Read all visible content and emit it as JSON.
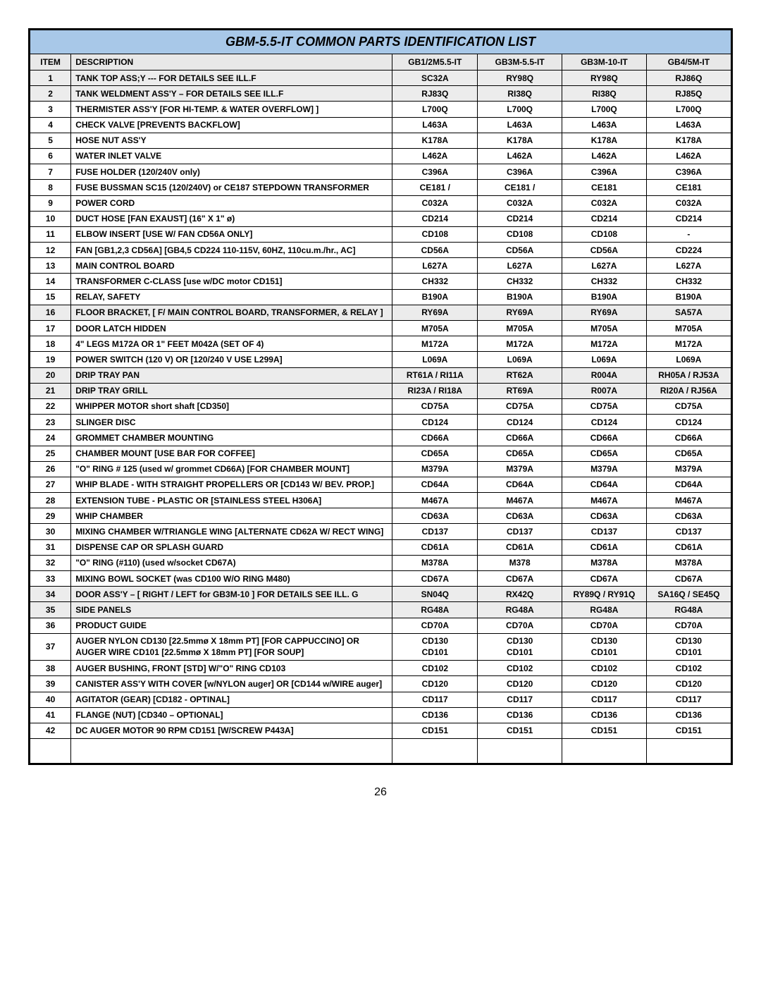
{
  "title": "GBM-5.5-IT COMMON PARTS IDENTIFICATION LIST",
  "columns": [
    "ITEM",
    "DESCRIPTION",
    "GB1/2M5.5-IT",
    "GB3M-5.5-IT",
    "GB3M-10-IT",
    "GB4/5M-IT"
  ],
  "page_number": "26",
  "rows": [
    {
      "n": "1",
      "shade": true,
      "desc": "TANK TOP  ASS;Y --- FOR DETAILS SEE ILL.F",
      "v": [
        "SC32A",
        "RY98Q",
        "RY98Q",
        "RJ86Q"
      ]
    },
    {
      "n": "2",
      "shade": true,
      "desc": "TANK  WELDMENT  ASS'Y – FOR DETAILS SEE ILL.F",
      "v": [
        "RJ83Q",
        "RI38Q",
        "RI38Q",
        "RJ85Q"
      ]
    },
    {
      "n": "3",
      "shade": false,
      "desc": "THERMISTER ASS'Y  [FOR HI-TEMP. & WATER OVERFLOW] ]",
      "v": [
        "L700Q",
        "L700Q",
        "L700Q",
        "L700Q"
      ]
    },
    {
      "n": "4",
      "shade": false,
      "desc": "CHECK VALVE  [PREVENTS BACKFLOW]",
      "v": [
        "L463A",
        "L463A",
        "L463A",
        "L463A"
      ]
    },
    {
      "n": "5",
      "shade": false,
      "desc": "HOSE NUT ASS'Y",
      "v": [
        "K178A",
        "K178A",
        "K178A",
        "K178A"
      ]
    },
    {
      "n": "6",
      "shade": false,
      "desc": "WATER INLET VALVE",
      "v": [
        "L462A",
        "L462A",
        "L462A",
        "L462A"
      ]
    },
    {
      "n": "7",
      "shade": false,
      "desc": "FUSE HOLDER (120/240V only)",
      "v": [
        "C396A",
        "C396A",
        "C396A",
        "C396A"
      ]
    },
    {
      "n": "8",
      "shade": false,
      "desc": "FUSE BUSSMAN SC15 (120/240V) or CE187 STEPDOWN TRANSFORMER",
      "v": [
        "CE181 /",
        "CE181 /",
        "CE181",
        "CE181"
      ]
    },
    {
      "n": "9",
      "shade": false,
      "desc": "POWER CORD",
      "v": [
        "C032A",
        "C032A",
        "C032A",
        "C032A"
      ]
    },
    {
      "n": "10",
      "shade": false,
      "desc": "DUCT  HOSE  [FAN EXAUST] (16\"  X 1\" ø)",
      "v": [
        "CD214",
        "CD214",
        "CD214",
        "CD214"
      ]
    },
    {
      "n": "11",
      "shade": false,
      "desc": "ELBOW INSERT   [USE W/ FAN CD56A ONLY]",
      "v": [
        "CD108",
        "CD108",
        "CD108",
        "-"
      ]
    },
    {
      "n": "12",
      "shade": false,
      "desc": "FAN     [GB1,2,3 CD56A]  [GB4,5 CD224 110-115V, 60HZ, 110cu.m./hr.,  AC]",
      "v": [
        "CD56A",
        "CD56A",
        "CD56A",
        "CD224"
      ]
    },
    {
      "n": "13",
      "shade": false,
      "desc": "MAIN CONTROL BOARD",
      "v": [
        "L627A",
        "L627A",
        "L627A",
        "L627A"
      ]
    },
    {
      "n": "14",
      "shade": false,
      "desc": "TRANSFORMER  C-CLASS [use w/DC motor CD151]",
      "v": [
        "CH332",
        "CH332",
        "CH332",
        "CH332"
      ]
    },
    {
      "n": "15",
      "shade": false,
      "desc": " RELAY,  SAFETY",
      "v": [
        "B190A",
        "B190A",
        "B190A",
        "B190A"
      ]
    },
    {
      "n": "16",
      "shade": true,
      "desc": "FLOOR BRACKET,  [ F/ MAIN CONTROL BOARD, TRANSFORMER, & RELAY ]",
      "v": [
        "RY69A",
        "RY69A",
        "RY69A",
        "SA57A"
      ]
    },
    {
      "n": "17",
      "shade": false,
      "desc": "DOOR LATCH HIDDEN",
      "v": [
        "M705A",
        "M705A",
        "M705A",
        "M705A"
      ]
    },
    {
      "n": "18",
      "shade": false,
      "desc": "4\" LEGS M172A  OR   1\" FEET  M042A  (SET OF 4)",
      "v": [
        "M172A",
        "M172A",
        "M172A",
        "M172A"
      ]
    },
    {
      "n": "19",
      "shade": false,
      "desc": "POWER SWITCH  (120 V)      OR  [120/240 V USE L299A]",
      "v": [
        "L069A",
        "L069A",
        "L069A",
        "L069A"
      ]
    },
    {
      "n": "20",
      "shade": true,
      "desc": "DRIP TRAY  PAN",
      "v": [
        "RT61A / RI11A",
        "RT62A",
        "R004A",
        "RH05A / RJ53A"
      ]
    },
    {
      "n": "21",
      "shade": true,
      "desc": "DRIP TRAY GRILL",
      "v": [
        "RI23A / RI18A",
        "RT69A",
        "R007A",
        "RI20A / RJ56A"
      ]
    },
    {
      "n": "22",
      "shade": false,
      "desc": "WHIPPER MOTOR   short  shaft  [CD350]",
      "v": [
        "CD75A",
        "CD75A",
        "CD75A",
        "CD75A"
      ]
    },
    {
      "n": "23",
      "shade": false,
      "desc": "SLINGER DISC",
      "v": [
        "CD124",
        "CD124",
        "CD124",
        "CD124"
      ]
    },
    {
      "n": "24",
      "shade": false,
      "desc": "GROMMET CHAMBER MOUNTING",
      "v": [
        "CD66A",
        "CD66A",
        "CD66A",
        "CD66A"
      ]
    },
    {
      "n": "25",
      "shade": false,
      "desc": "CHAMBER MOUNT     [USE BAR FOR COFFEE]",
      "v": [
        "CD65A",
        "CD65A",
        "CD65A",
        "CD65A"
      ]
    },
    {
      "n": "26",
      "shade": false,
      "desc": "\"O\" RING # 125  (used w/ grommet CD66A)  [FOR CHAMBER MOUNT]",
      "v": [
        "M379A",
        "M379A",
        "M379A",
        "M379A"
      ]
    },
    {
      "n": "27",
      "shade": false,
      "desc": "WHIP BLADE - WITH STRAIGHT PROPELLERS OR  [CD143 W/ BEV. PROP.]",
      "v": [
        "CD64A",
        "CD64A",
        "CD64A",
        "CD64A"
      ]
    },
    {
      "n": "28",
      "shade": false,
      "desc": "EXTENSION TUBE - PLASTIC     OR   [STAINLESS STEEL H306A]",
      "v": [
        "M467A",
        "M467A",
        "M467A",
        "M467A"
      ]
    },
    {
      "n": "29",
      "shade": false,
      "desc": "WHIP CHAMBER",
      "v": [
        "CD63A",
        "CD63A",
        "CD63A",
        "CD63A"
      ]
    },
    {
      "n": "30",
      "shade": false,
      "desc": "MIXING CHAMBER  W/TRIANGLE WING  [ALTERNATE CD62A W/ RECT  WING]",
      "v": [
        "CD137",
        "CD137",
        "CD137",
        "CD137"
      ]
    },
    {
      "n": "31",
      "shade": false,
      "desc": "DISPENSE CAP OR SPLASH GUARD",
      "v": [
        "CD61A",
        "CD61A",
        "CD61A",
        "CD61A"
      ]
    },
    {
      "n": "32",
      "shade": false,
      "desc": "\"O\" RING (#110) (used w/socket CD67A)",
      "v": [
        "M378A",
        "M378",
        "M378A",
        "M378A"
      ]
    },
    {
      "n": "33",
      "shade": false,
      "desc": "MIXING BOWL SOCKET    (was CD100 W/O RING M480)",
      "v": [
        "CD67A",
        "CD67A",
        "CD67A",
        "CD67A"
      ]
    },
    {
      "n": "34",
      "shade": true,
      "desc": "DOOR ASS'Y – [ RIGHT / LEFT for GB3M-10 ] FOR DETAILS  SEE  ILL. G",
      "v": [
        "SN04Q",
        "RX42Q",
        "RY89Q / RY91Q",
        "SA16Q / SE45Q"
      ]
    },
    {
      "n": "35",
      "shade": true,
      "desc": "SIDE PANELS",
      "v": [
        "RG48A",
        "RG48A",
        "RG48A",
        "RG48A"
      ]
    },
    {
      "n": "36",
      "shade": false,
      "desc": "PRODUCT GUIDE",
      "v": [
        "CD70A",
        "CD70A",
        "CD70A",
        "CD70A"
      ]
    },
    {
      "n": "37",
      "shade": false,
      "desc": "AUGER NYLON   CD130  [22.5mmø X 18mm PT]  [FOR CAPPUCCINO]  OR\nAUGER WIRE  CD101 [22.5mmø X 18mm PT]  [FOR SOUP]",
      "v": [
        "CD130\nCD101",
        "CD130\nCD101",
        "CD130\nCD101",
        "CD130\nCD101"
      ]
    },
    {
      "n": "38",
      "shade": false,
      "desc": "AUGER BUSHING, FRONT  [STD]  W/\"O\" RING CD103",
      "v": [
        "CD102",
        "CD102",
        "CD102",
        "CD102"
      ]
    },
    {
      "n": "39",
      "shade": false,
      "desc": "CANISTER ASS'Y WITH COVER  [w/NYLON auger]  OR  [CD144 w/WIRE auger]",
      "v": [
        "CD120",
        "CD120",
        "CD120",
        "CD120"
      ]
    },
    {
      "n": "40",
      "shade": false,
      "desc": "AGITATOR (GEAR)  [CD182 - OPTINAL]",
      "v": [
        "CD117",
        "CD117",
        "CD117",
        "CD117"
      ]
    },
    {
      "n": "41",
      "shade": false,
      "desc": "FLANGE (NUT)  [CD340 – OPTIONAL]",
      "v": [
        "CD136",
        "CD136",
        "CD136",
        "CD136"
      ]
    },
    {
      "n": "42",
      "shade": false,
      "desc": "DC AUGER MOTOR 90 RPM  CD151  [W/SCREW P443A]",
      "v": [
        "CD151",
        "CD151",
        "CD151",
        "CD151"
      ]
    }
  ]
}
